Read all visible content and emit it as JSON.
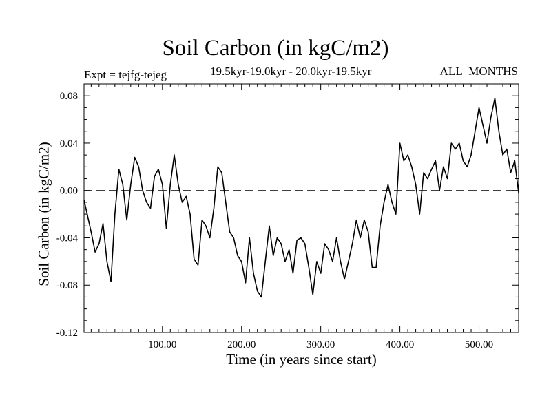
{
  "chart_data": {
    "type": "line",
    "title": "Soil Carbon (in kgC/m2)",
    "expt_label": "Expt = tejfg-tejeg",
    "subtitle": "19.5kyr-19.0kyr - 20.0kyr-19.5kyr",
    "months_label": "ALL_MONTHS",
    "xlabel": "Time (in years since start)",
    "ylabel": "Soil Carbon (in kgC/m2)",
    "xlim": [
      1,
      550
    ],
    "ylim": [
      -0.12,
      0.09
    ],
    "x_ticks": [
      100,
      200,
      300,
      400,
      500
    ],
    "x_tick_labels": [
      "100.00",
      "200.00",
      "300.00",
      "400.00",
      "500.00"
    ],
    "y_ticks": [
      0.08,
      0.04,
      0.0,
      -0.04,
      -0.08,
      -0.12
    ],
    "y_tick_labels": [
      "0.08",
      "0.04",
      "0.00",
      "-0.04",
      "-0.08",
      "-0.12"
    ],
    "zero_line": {
      "y": 0.0,
      "style": "dashed"
    },
    "series": [
      {
        "name": "Soil Carbon",
        "color": "#000000",
        "points": [
          [
            1,
            -0.008
          ],
          [
            5,
            -0.02
          ],
          [
            10,
            -0.035
          ],
          [
            15,
            -0.052
          ],
          [
            20,
            -0.045
          ],
          [
            25,
            -0.028
          ],
          [
            30,
            -0.06
          ],
          [
            35,
            -0.077
          ],
          [
            40,
            -0.02
          ],
          [
            45,
            0.018
          ],
          [
            50,
            0.005
          ],
          [
            55,
            -0.025
          ],
          [
            60,
            0.005
          ],
          [
            65,
            0.028
          ],
          [
            70,
            0.02
          ],
          [
            75,
            0.0
          ],
          [
            80,
            -0.01
          ],
          [
            85,
            -0.015
          ],
          [
            90,
            0.012
          ],
          [
            95,
            0.018
          ],
          [
            100,
            0.005
          ],
          [
            105,
            -0.032
          ],
          [
            110,
            0.005
          ],
          [
            115,
            0.03
          ],
          [
            120,
            0.005
          ],
          [
            125,
            -0.01
          ],
          [
            130,
            -0.005
          ],
          [
            135,
            -0.02
          ],
          [
            140,
            -0.058
          ],
          [
            145,
            -0.063
          ],
          [
            150,
            -0.025
          ],
          [
            155,
            -0.03
          ],
          [
            160,
            -0.04
          ],
          [
            165,
            -0.015
          ],
          [
            170,
            0.02
          ],
          [
            175,
            0.015
          ],
          [
            180,
            -0.01
          ],
          [
            185,
            -0.035
          ],
          [
            190,
            -0.04
          ],
          [
            195,
            -0.055
          ],
          [
            200,
            -0.06
          ],
          [
            205,
            -0.078
          ],
          [
            210,
            -0.04
          ],
          [
            215,
            -0.07
          ],
          [
            220,
            -0.085
          ],
          [
            225,
            -0.09
          ],
          [
            230,
            -0.06
          ],
          [
            235,
            -0.03
          ],
          [
            240,
            -0.055
          ],
          [
            245,
            -0.04
          ],
          [
            250,
            -0.045
          ],
          [
            255,
            -0.06
          ],
          [
            260,
            -0.05
          ],
          [
            265,
            -0.07
          ],
          [
            270,
            -0.042
          ],
          [
            275,
            -0.04
          ],
          [
            280,
            -0.045
          ],
          [
            285,
            -0.065
          ],
          [
            290,
            -0.088
          ],
          [
            295,
            -0.06
          ],
          [
            300,
            -0.07
          ],
          [
            305,
            -0.045
          ],
          [
            310,
            -0.05
          ],
          [
            315,
            -0.06
          ],
          [
            320,
            -0.04
          ],
          [
            325,
            -0.06
          ],
          [
            330,
            -0.075
          ],
          [
            335,
            -0.06
          ],
          [
            340,
            -0.045
          ],
          [
            345,
            -0.025
          ],
          [
            350,
            -0.04
          ],
          [
            355,
            -0.025
          ],
          [
            360,
            -0.035
          ],
          [
            365,
            -0.065
          ],
          [
            370,
            -0.065
          ],
          [
            375,
            -0.03
          ],
          [
            380,
            -0.01
          ],
          [
            385,
            0.005
          ],
          [
            390,
            -0.01
          ],
          [
            395,
            -0.02
          ],
          [
            400,
            0.04
          ],
          [
            405,
            0.025
          ],
          [
            410,
            0.03
          ],
          [
            415,
            0.02
          ],
          [
            420,
            0.005
          ],
          [
            425,
            -0.02
          ],
          [
            430,
            0.015
          ],
          [
            435,
            0.01
          ],
          [
            440,
            0.018
          ],
          [
            445,
            0.025
          ],
          [
            450,
            0.0
          ],
          [
            455,
            0.02
          ],
          [
            460,
            0.01
          ],
          [
            465,
            0.04
          ],
          [
            470,
            0.035
          ],
          [
            475,
            0.04
          ],
          [
            480,
            0.025
          ],
          [
            485,
            0.02
          ],
          [
            490,
            0.03
          ],
          [
            495,
            0.05
          ],
          [
            500,
            0.07
          ],
          [
            505,
            0.055
          ],
          [
            510,
            0.04
          ],
          [
            515,
            0.062
          ],
          [
            520,
            0.078
          ],
          [
            525,
            0.05
          ],
          [
            530,
            0.03
          ],
          [
            535,
            0.035
          ],
          [
            540,
            0.015
          ],
          [
            545,
            0.025
          ],
          [
            550,
            -0.002
          ]
        ]
      }
    ]
  }
}
